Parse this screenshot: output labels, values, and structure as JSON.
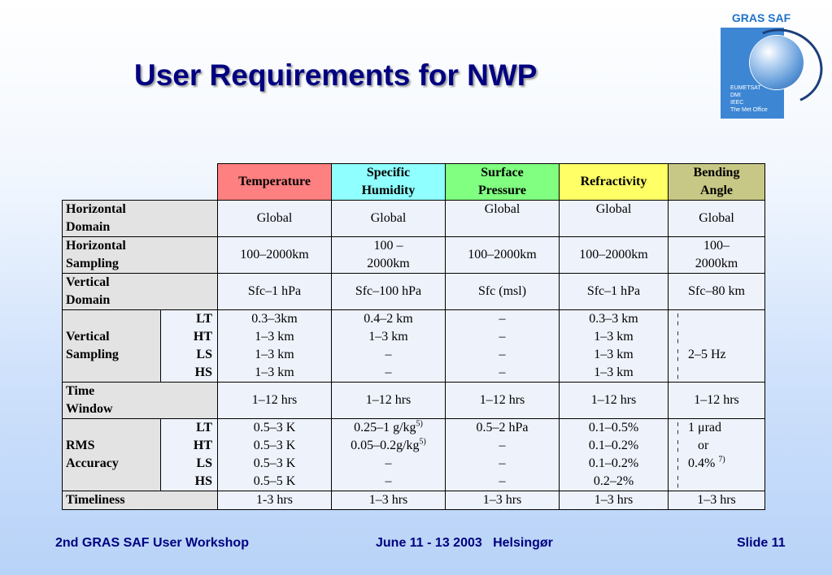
{
  "slide": {
    "title": "User Requirements for NWP",
    "logo": {
      "name": "GRAS SAF",
      "lines": [
        "EUMETSAT",
        "DMI",
        "IEEC",
        "The Met Office"
      ]
    },
    "footer": {
      "left": "2nd GRAS SAF User Workshop",
      "center": "June 11 - 13 2003   Helsingør",
      "right": "Slide 11"
    }
  },
  "table": {
    "columns": [
      {
        "line1": "Temperature",
        "line2": ""
      },
      {
        "line1": "Specific",
        "line2": "Humidity"
      },
      {
        "line1": "Surface",
        "line2": "Pressure"
      },
      {
        "line1": "Refractivity",
        "line2": ""
      },
      {
        "line1": "Bending",
        "line2": "Angle"
      }
    ],
    "horizontal_domain": {
      "label1": "Horizontal",
      "label2": "Domain",
      "values": [
        "Global",
        "Global",
        "Global",
        "Global",
        "Global"
      ]
    },
    "horizontal_sampling": {
      "label1": "Horizontal",
      "label2": "Sampling",
      "values": [
        {
          "a": "100–2000km",
          "b": ""
        },
        {
          "a": "100 –",
          "b": "2000km"
        },
        {
          "a": "100–2000km",
          "b": ""
        },
        {
          "a": "100–2000km",
          "b": ""
        },
        {
          "a": "100–",
          "b": "2000km"
        }
      ]
    },
    "vertical_domain": {
      "label1": "Vertical",
      "label2": "Domain",
      "values": [
        "Sfc–1 hPa",
        "Sfc–100 hPa",
        "Sfc (msl)",
        "Sfc–1 hPa",
        "Sfc–80 km"
      ]
    },
    "vertical_sampling": {
      "label1": "Vertical",
      "label2": "Sampling",
      "subs": [
        "LT",
        "HT",
        "LS",
        "HS"
      ],
      "temperature": [
        "0.3–3km",
        "1–3 km",
        "1–3 km",
        "1–3 km"
      ],
      "humidity": [
        "0.4–2 km",
        "1–3 km",
        "–",
        "–"
      ],
      "pressure": [
        "–",
        "–",
        "–",
        "–"
      ],
      "refractivity": [
        "0.3–3 km",
        "1–3 km",
        "1–3 km",
        "1–3 km"
      ],
      "bending": "2–5 Hz"
    },
    "time_window": {
      "label1": "Time",
      "label2": "Window",
      "values": [
        "1–12 hrs",
        "1–12 hrs",
        "1–12 hrs",
        "1–12 hrs",
        "1–12 hrs"
      ]
    },
    "rms_accuracy": {
      "label1": "RMS",
      "label2": "Accuracy",
      "subs": [
        "LT",
        "HT",
        "LS",
        "HS"
      ],
      "temperature": [
        "0.5–3 K",
        "0.5–3 K",
        "0.5–3 K",
        "0.5–5 K"
      ],
      "humidity": [
        "0.25–1 g/kg",
        "0.05–0.2g/kg",
        "–",
        "–"
      ],
      "humidity_note": "5)",
      "pressure": [
        "0.5–2 hPa",
        "–",
        "–",
        "–"
      ],
      "refractivity": [
        "0.1–0.5%",
        "0.1–0.2%",
        "0.1–0.2%",
        "0.2–2%"
      ],
      "bending": [
        "1 μrad",
        "or",
        "0.4%",
        ""
      ],
      "bending_note": "7)"
    },
    "timeliness": {
      "label": "Timeliness",
      "values": [
        "1-3 hrs",
        "1–3 hrs",
        "1–3 hrs",
        "1–3 hrs",
        "1–3 hrs"
      ]
    }
  }
}
